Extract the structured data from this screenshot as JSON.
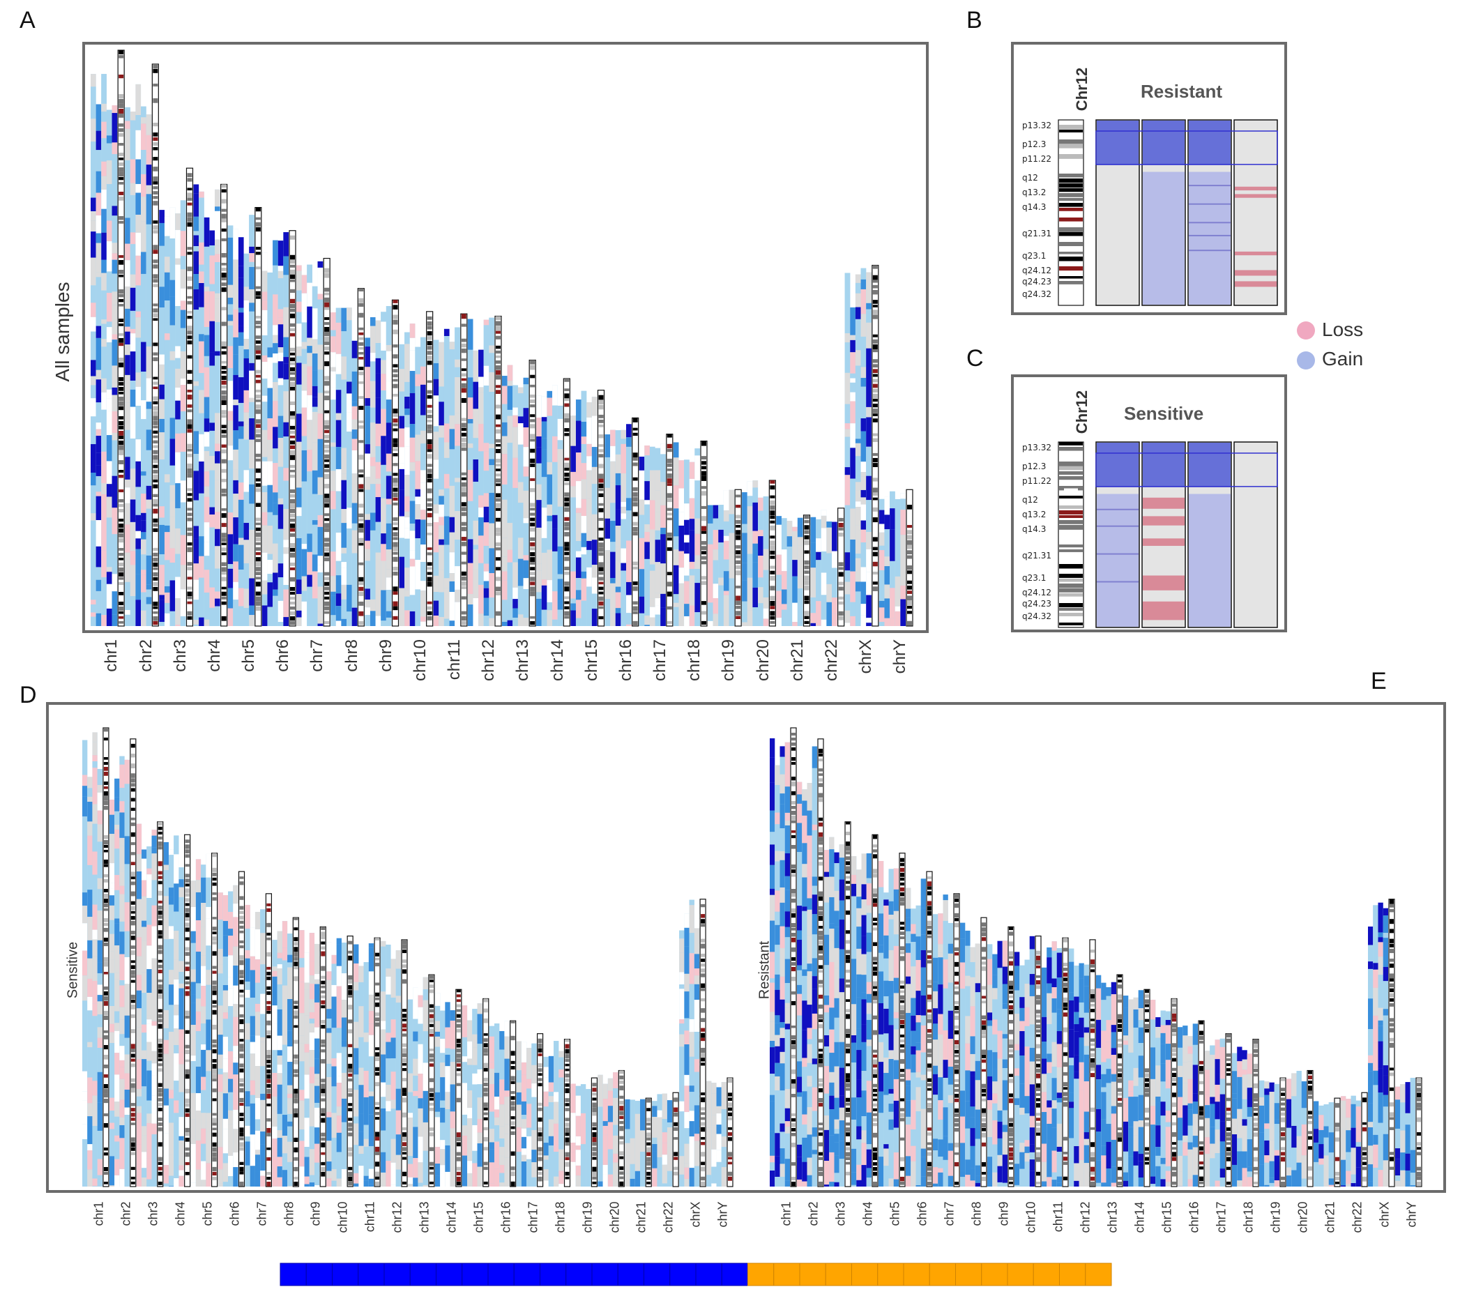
{
  "panels": {
    "a": {
      "letter": "A",
      "ylabel": "All samples",
      "chromosomes": [
        "chr1",
        "chr2",
        "chr3",
        "chr4",
        "chr5",
        "chr6",
        "chr7",
        "chr8",
        "chr9",
        "chr10",
        "chr11",
        "chr12",
        "chr13",
        "chr14",
        "chr15",
        "chr16",
        "chr17",
        "chr18",
        "chr19",
        "chr20",
        "chr21",
        "chr22",
        "chrX",
        "chrY"
      ]
    },
    "b": {
      "letter": "B",
      "chrom": "Chr12",
      "title": "Resistant",
      "bands": [
        "p13.32",
        "p12.3",
        "p11.22",
        "q12",
        "q13.2",
        "q14.3",
        "q21.31",
        "q23.1",
        "q24.12",
        "q24.23",
        "q24.32"
      ]
    },
    "c": {
      "letter": "C",
      "chrom": "Chr12",
      "title": "Sensitive",
      "bands": [
        "p13.32",
        "p12.3",
        "p11.22",
        "q12",
        "q13.2",
        "q14.3",
        "q21.31",
        "q23.1",
        "q24.12",
        "q24.23",
        "q24.32"
      ]
    },
    "d": {
      "letter": "D",
      "ylabel": "Sensitive",
      "chromosomes": [
        "chr1",
        "chr2",
        "chr3",
        "chr4",
        "chr5",
        "chr6",
        "chr7",
        "chr8",
        "chr9",
        "chr10",
        "chr11",
        "chr12",
        "chr13",
        "chr14",
        "chr15",
        "chr16",
        "chr17",
        "chr18",
        "chr19",
        "chr20",
        "chr21",
        "chr22",
        "chrX",
        "chrY"
      ]
    },
    "e": {
      "letter": "E",
      "ylabel": "Resistant",
      "chromosomes": [
        "chr1",
        "chr2",
        "chr3",
        "chr4",
        "chr5",
        "chr6",
        "chr7",
        "chr8",
        "chr9",
        "chr10",
        "chr11",
        "chr12",
        "chr13",
        "chr14",
        "chr15",
        "chr16",
        "chr17",
        "chr18",
        "chr19",
        "chr20",
        "chr21",
        "chr22",
        "chrX",
        "chrY"
      ]
    }
  },
  "legend": {
    "loss": "Loss",
    "gain": "Gain",
    "loss_color": "#f0a8c0",
    "gain_color": "#a8b8e8"
  },
  "colors": {
    "frame": "#6b6b6b",
    "dark_blue": "#1010c0",
    "mid_blue": "#3a8fdc",
    "light_blue": "#a6d4ee",
    "pink": "#f6c6ce",
    "grey": "#dcdcdc",
    "sensitive_bar": "#0000ff",
    "resistant_bar": "#ffa500"
  },
  "chrom_lengths_mb": [
    249,
    243,
    198,
    191,
    181,
    171,
    159,
    146,
    141,
    136,
    135,
    134,
    115,
    107,
    102,
    90,
    83,
    80,
    59,
    63,
    48,
    51,
    156,
    59
  ],
  "sample_bar": {
    "sensitive_count": 18,
    "resistant_count": 14
  }
}
